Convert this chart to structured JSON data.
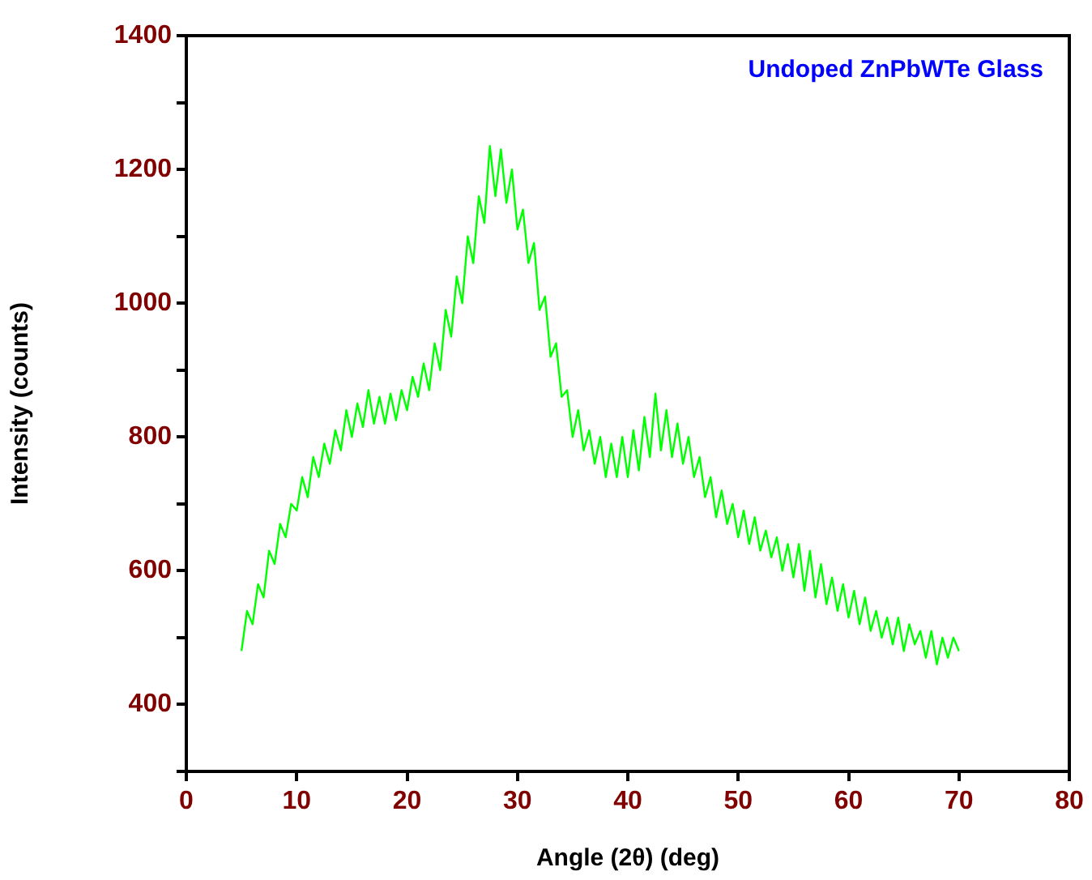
{
  "chart_data": {
    "type": "line",
    "xlabel": "Angle (2θ) (deg)",
    "ylabel": "Intensity (counts)",
    "annotations": [
      "Undoped ZnPbWTe Glass"
    ],
    "xlim": [
      0,
      80
    ],
    "xticks": [
      0,
      10,
      20,
      30,
      40,
      50,
      60,
      70,
      80
    ],
    "ylim": [
      300,
      1400
    ],
    "yticks": [
      {
        "value": 300,
        "label": null
      },
      400,
      {
        "value": 500,
        "label": null
      },
      600,
      {
        "value": 700,
        "label": null
      },
      800,
      {
        "value": 900,
        "label": null
      },
      1000,
      {
        "value": 1100,
        "label": null
      },
      1200,
      {
        "value": 1300,
        "label": null
      },
      1400
    ],
    "grid": false,
    "legend": false,
    "marker": "none",
    "line_style": "solid",
    "series": [
      {
        "color": "#00ff00",
        "x": [
          5,
          5.5,
          6,
          6.5,
          7,
          7.5,
          8,
          8.5,
          9,
          9.5,
          10,
          10.5,
          11,
          11.5,
          12,
          12.5,
          13,
          13.5,
          14,
          14.5,
          15,
          15.5,
          16,
          16.5,
          17,
          17.5,
          18,
          18.5,
          19,
          19.5,
          20,
          20.5,
          21,
          21.5,
          22,
          22.5,
          23,
          23.5,
          24,
          24.5,
          25,
          25.5,
          26,
          26.5,
          27,
          27.5,
          28,
          28.5,
          29,
          29.5,
          30,
          30.5,
          31,
          31.5,
          32,
          32.5,
          33,
          33.5,
          34,
          34.5,
          35,
          35.5,
          36,
          36.5,
          37,
          37.5,
          38,
          38.5,
          39,
          39.5,
          40,
          40.5,
          41,
          41.5,
          42,
          42.5,
          43,
          43.5,
          44,
          44.5,
          45,
          45.5,
          46,
          46.5,
          47,
          47.5,
          48,
          48.5,
          49,
          49.5,
          50,
          50.5,
          51,
          51.5,
          52,
          52.5,
          53,
          53.5,
          54,
          54.5,
          55,
          55.5,
          56,
          56.5,
          57,
          57.5,
          58,
          58.5,
          59,
          59.5,
          60,
          60.5,
          61,
          61.5,
          62,
          62.5,
          63,
          63.5,
          64,
          64.5,
          65,
          65.5,
          66,
          66.5,
          67,
          67.5,
          68,
          68.5,
          69,
          69.5,
          70
        ],
        "values": [
          480,
          540,
          520,
          580,
          560,
          630,
          610,
          670,
          650,
          700,
          690,
          740,
          710,
          770,
          740,
          790,
          760,
          810,
          780,
          840,
          800,
          850,
          815,
          870,
          820,
          860,
          820,
          865,
          825,
          870,
          840,
          890,
          860,
          910,
          870,
          940,
          900,
          990,
          950,
          1040,
          1000,
          1100,
          1060,
          1160,
          1120,
          1235,
          1160,
          1230,
          1150,
          1200,
          1110,
          1140,
          1060,
          1090,
          990,
          1010,
          920,
          940,
          860,
          870,
          800,
          840,
          780,
          810,
          760,
          800,
          740,
          790,
          740,
          800,
          740,
          810,
          750,
          830,
          770,
          865,
          780,
          840,
          770,
          820,
          760,
          800,
          740,
          770,
          710,
          740,
          680,
          720,
          670,
          700,
          650,
          690,
          640,
          680,
          630,
          660,
          620,
          650,
          600,
          640,
          590,
          640,
          570,
          630,
          560,
          610,
          550,
          590,
          540,
          580,
          530,
          570,
          520,
          560,
          510,
          540,
          500,
          530,
          490,
          530,
          480,
          520,
          490,
          510,
          470,
          510,
          460,
          500,
          470,
          500,
          480
        ]
      }
    ]
  }
}
